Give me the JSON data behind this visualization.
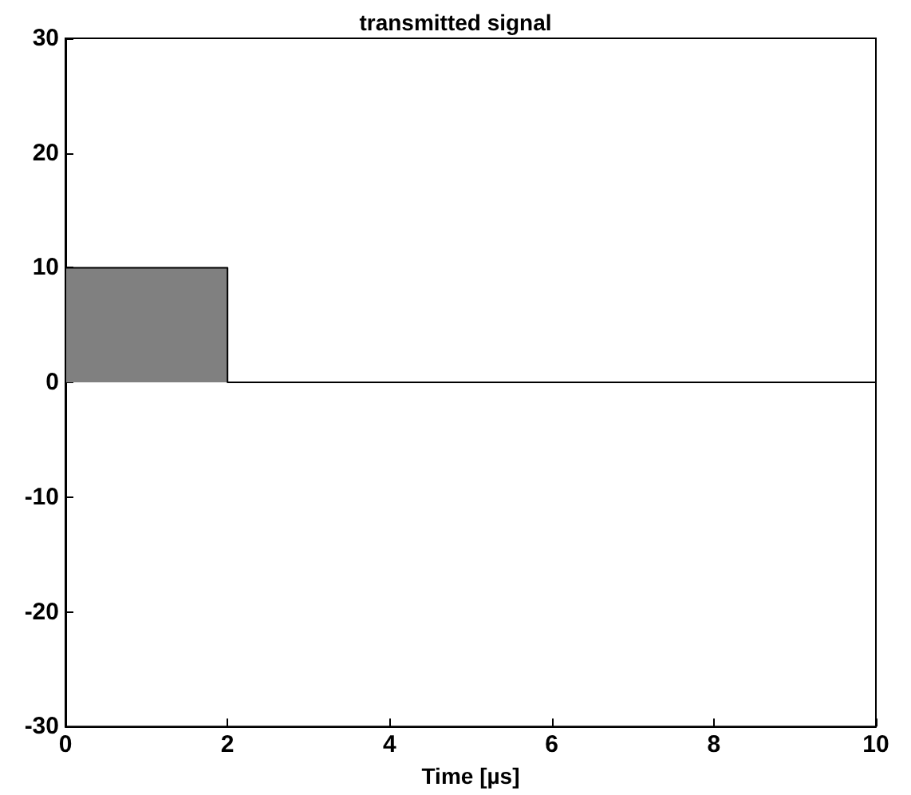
{
  "chart_data": {
    "type": "area",
    "title": "transmitted signal",
    "xlabel": "Time [µs]",
    "x": [
      0,
      0,
      2,
      2,
      10
    ],
    "series": [
      {
        "color": "#808080",
        "values": [
          0,
          10,
          10,
          0,
          0
        ]
      }
    ],
    "xlim": [
      0,
      10
    ],
    "xticks": [
      0,
      2,
      4,
      6,
      8,
      10
    ],
    "ylim": [
      -30,
      30
    ],
    "yticks": [
      -30,
      -20,
      -10,
      0,
      10,
      20,
      30
    ],
    "grid": false,
    "marker": "none",
    "line_style": "solid"
  }
}
